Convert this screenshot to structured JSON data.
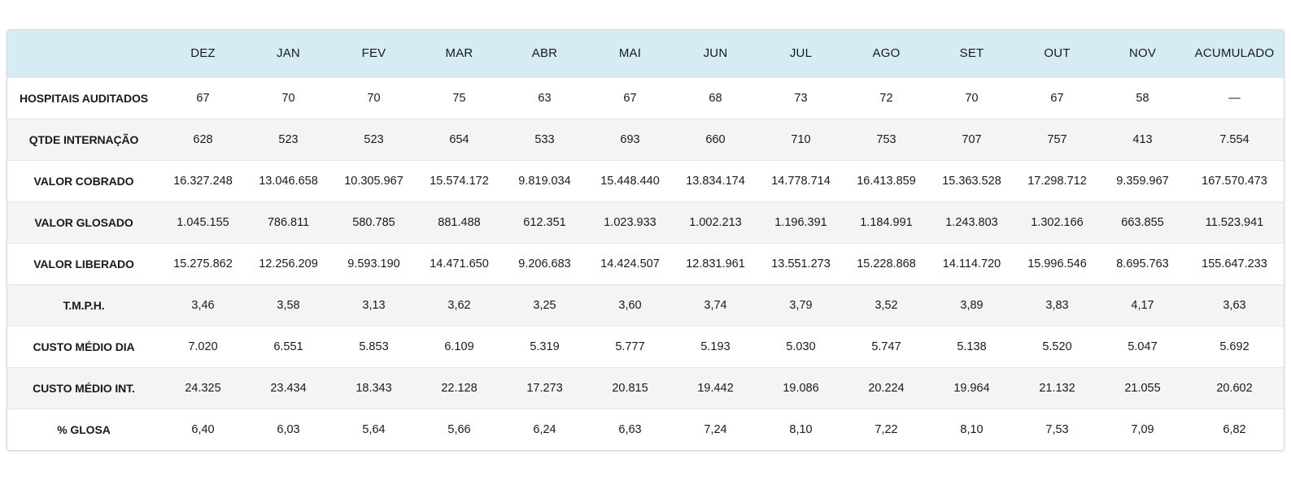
{
  "table": {
    "headers": [
      "",
      "DEZ",
      "JAN",
      "FEV",
      "MAR",
      "ABR",
      "MAI",
      "JUN",
      "JUL",
      "AGO",
      "SET",
      "OUT",
      "NOV",
      "ACUMULADO"
    ],
    "rows": [
      {
        "label": "HOSPITAIS AUDITADOS",
        "values": [
          "67",
          "70",
          "70",
          "75",
          "63",
          "67",
          "68",
          "73",
          "72",
          "70",
          "67",
          "58",
          "—"
        ]
      },
      {
        "label": "QTDE INTERNAÇÃO",
        "values": [
          "628",
          "523",
          "523",
          "654",
          "533",
          "693",
          "660",
          "710",
          "753",
          "707",
          "757",
          "413",
          "7.554"
        ]
      },
      {
        "label": "VALOR COBRADO",
        "values": [
          "16.327.248",
          "13.046.658",
          "10.305.967",
          "15.574.172",
          "9.819.034",
          "15.448.440",
          "13.834.174",
          "14.778.714",
          "16.413.859",
          "15.363.528",
          "17.298.712",
          "9.359.967",
          "167.570.473"
        ]
      },
      {
        "label": "VALOR GLOSADO",
        "values": [
          "1.045.155",
          "786.811",
          "580.785",
          "881.488",
          "612.351",
          "1.023.933",
          "1.002.213",
          "1.196.391",
          "1.184.991",
          "1.243.803",
          "1.302.166",
          "663.855",
          "11.523.941"
        ]
      },
      {
        "label": "VALOR LIBERADO",
        "values": [
          "15.275.862",
          "12.256.209",
          "9.593.190",
          "14.471.650",
          "9.206.683",
          "14.424.507",
          "12.831.961",
          "13.551.273",
          "15.228.868",
          "14.114.720",
          "15.996.546",
          "8.695.763",
          "155.647.233"
        ]
      },
      {
        "label": "T.M.P.H.",
        "values": [
          "3,46",
          "3,58",
          "3,13",
          "3,62",
          "3,25",
          "3,60",
          "3,74",
          "3,79",
          "3,52",
          "3,89",
          "3,83",
          "4,17",
          "3,63"
        ]
      },
      {
        "label": "CUSTO MÉDIO DIA",
        "values": [
          "7.020",
          "6.551",
          "5.853",
          "6.109",
          "5.319",
          "5.777",
          "5.193",
          "5.030",
          "5.747",
          "5.138",
          "5.520",
          "5.047",
          "5.692"
        ]
      },
      {
        "label": "CUSTO MÉDIO INT.",
        "values": [
          "24.325",
          "23.434",
          "18.343",
          "22.128",
          "17.273",
          "20.815",
          "19.442",
          "19.086",
          "20.224",
          "19.964",
          "21.132",
          "21.055",
          "20.602"
        ]
      },
      {
        "label": "% GLOSA",
        "values": [
          "6,40",
          "6,03",
          "5,64",
          "5,66",
          "6,24",
          "6,63",
          "7,24",
          "8,10",
          "7,22",
          "8,10",
          "7,53",
          "7,09",
          "6,82"
        ]
      }
    ]
  },
  "colors": {
    "header_bg": "#d6ecf4",
    "row_alt_bg": "#f4f4f4",
    "text": "#1a1a1a"
  }
}
